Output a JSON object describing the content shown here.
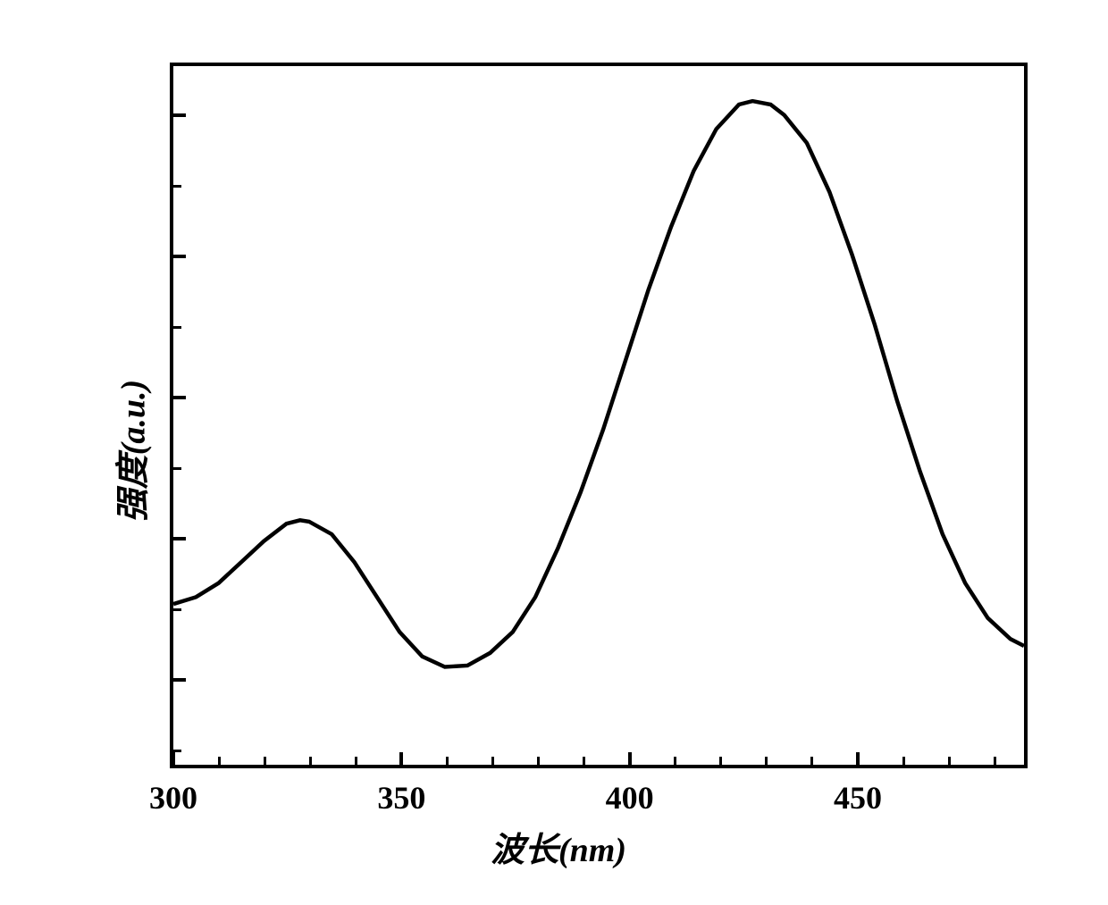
{
  "chart": {
    "type": "line",
    "xlabel": "波长(nm)",
    "ylabel": "强度(a.u.)",
    "label_fontsize": 38,
    "tick_fontsize": 36,
    "xlim": [
      300,
      488
    ],
    "ylim": [
      0,
      100
    ],
    "x_major_ticks": [
      300,
      350,
      400,
      450
    ],
    "x_minor_ticks": [
      310,
      320,
      330,
      340,
      360,
      370,
      380,
      390,
      410,
      420,
      430,
      440,
      460,
      470,
      480
    ],
    "y_major_ticks": [
      13,
      33,
      53,
      73,
      93
    ],
    "y_minor_ticks": [
      3,
      23,
      43,
      63,
      83
    ],
    "line_color": "#000000",
    "line_width": 4.5,
    "background_color": "#ffffff",
    "border_color": "#000000",
    "border_width": 4,
    "data_points": [
      {
        "x": 300,
        "y": 23
      },
      {
        "x": 305,
        "y": 24
      },
      {
        "x": 310,
        "y": 26
      },
      {
        "x": 315,
        "y": 29
      },
      {
        "x": 320,
        "y": 32
      },
      {
        "x": 325,
        "y": 34.5
      },
      {
        "x": 328,
        "y": 35
      },
      {
        "x": 330,
        "y": 34.8
      },
      {
        "x": 335,
        "y": 33
      },
      {
        "x": 340,
        "y": 29
      },
      {
        "x": 345,
        "y": 24
      },
      {
        "x": 350,
        "y": 19
      },
      {
        "x": 355,
        "y": 15.5
      },
      {
        "x": 360,
        "y": 14
      },
      {
        "x": 365,
        "y": 14.2
      },
      {
        "x": 370,
        "y": 16
      },
      {
        "x": 375,
        "y": 19
      },
      {
        "x": 380,
        "y": 24
      },
      {
        "x": 385,
        "y": 31
      },
      {
        "x": 390,
        "y": 39
      },
      {
        "x": 395,
        "y": 48
      },
      {
        "x": 400,
        "y": 58
      },
      {
        "x": 405,
        "y": 68
      },
      {
        "x": 410,
        "y": 77
      },
      {
        "x": 415,
        "y": 85
      },
      {
        "x": 420,
        "y": 91
      },
      {
        "x": 425,
        "y": 94.5
      },
      {
        "x": 428,
        "y": 95
      },
      {
        "x": 432,
        "y": 94.5
      },
      {
        "x": 435,
        "y": 93
      },
      {
        "x": 440,
        "y": 89
      },
      {
        "x": 445,
        "y": 82
      },
      {
        "x": 450,
        "y": 73
      },
      {
        "x": 455,
        "y": 63
      },
      {
        "x": 460,
        "y": 52
      },
      {
        "x": 465,
        "y": 42
      },
      {
        "x": 470,
        "y": 33
      },
      {
        "x": 475,
        "y": 26
      },
      {
        "x": 480,
        "y": 21
      },
      {
        "x": 485,
        "y": 18
      },
      {
        "x": 488,
        "y": 17
      }
    ]
  }
}
